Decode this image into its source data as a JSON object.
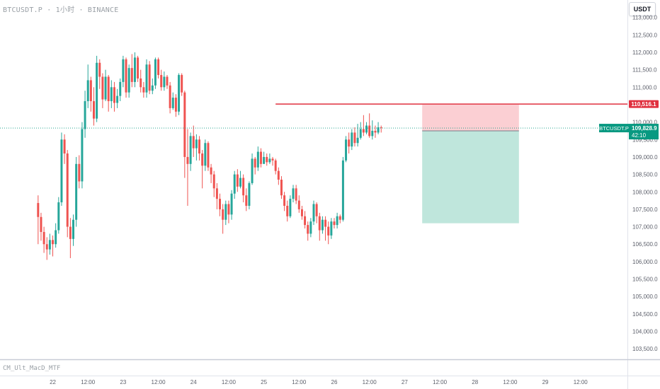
{
  "header": {
    "symbol_line": "BTCUSDT.P · 1小时 · BINANCE",
    "currency": "USDT"
  },
  "indicator": {
    "label": "CM_Ult_MacD_MTF"
  },
  "tags": {
    "resistance_value": "110,516.1",
    "symbol": "BTCUSDT.P",
    "last_price": "109,828.9",
    "countdown": "42:10"
  },
  "colors": {
    "up": "#26a69a",
    "down": "#ef5350",
    "resistance": "#e0303f",
    "risk_zone": "#fbcfd3",
    "reward_zone": "#bfe6dc",
    "last_price": "#089981"
  },
  "chart_data": {
    "type": "candlestick",
    "title": "",
    "y_axis": {
      "ticks": [
        103500,
        104000,
        104500,
        105000,
        105500,
        106000,
        106500,
        107000,
        107500,
        108000,
        108500,
        109000,
        109500,
        110000,
        110500,
        111000,
        111500,
        112000,
        112500,
        113000
      ],
      "tick_labels": [
        "103,500.0",
        "104,000.0",
        "104,500.0",
        "105,000.0",
        "105,500.0",
        "106,000.0",
        "106,500.0",
        "107,000.0",
        "107,500.0",
        "108,000.0",
        "108,500.0",
        "109,000.0",
        "109,500.0",
        "110,000.0",
        "110,500.0",
        "111,000.0",
        "111,500.0",
        "112,000.0",
        "112,500.0",
        "113,000.0"
      ],
      "range": [
        103200,
        113500
      ]
    },
    "x_axis": {
      "tick_labels": [
        "22",
        "12:00",
        "23",
        "12:00",
        "24",
        "12:00",
        "25",
        "12:00",
        "26",
        "12:00",
        "27",
        "12:00",
        "28",
        "12:00",
        "29",
        "12:00"
      ],
      "range_hours": [
        -36,
        178
      ]
    },
    "resistance_level": 110516.1,
    "last_price": 109828.9,
    "position": {
      "entry": 109750,
      "stop": 110500,
      "target": 107100,
      "x_start_hours": 108,
      "x_end_hours": 141
    },
    "candles": [
      [
        107680,
        107280,
        107900,
        106500
      ],
      [
        107280,
        106850,
        107400,
        106600
      ],
      [
        106850,
        106500,
        107000,
        106250
      ],
      [
        106500,
        106350,
        106700,
        106050
      ],
      [
        106350,
        106620,
        106800,
        106200
      ],
      [
        106620,
        106500,
        106750,
        106150
      ],
      [
        106500,
        106900,
        107100,
        106400
      ],
      [
        106900,
        107700,
        107850,
        106800
      ],
      [
        107700,
        109500,
        109700,
        107600
      ],
      [
        109500,
        109100,
        109650,
        108800
      ],
      [
        109100,
        107000,
        109200,
        106700
      ],
      [
        107000,
        106650,
        107250,
        106100
      ],
      [
        106650,
        107200,
        107350,
        106450
      ],
      [
        107200,
        108800,
        109000,
        107000
      ],
      [
        108800,
        108300,
        109050,
        108100
      ],
      [
        108300,
        109800,
        110000,
        108100
      ],
      [
        109800,
        110600,
        110900,
        109550
      ],
      [
        110600,
        111200,
        111650,
        110400
      ],
      [
        111200,
        110600,
        111300,
        110300
      ],
      [
        110600,
        110100,
        111000,
        109900
      ],
      [
        110100,
        111700,
        111900,
        110000
      ],
      [
        111700,
        111300,
        111800,
        110950
      ],
      [
        111300,
        110650,
        111400,
        110400
      ],
      [
        110650,
        111300,
        111500,
        110600
      ],
      [
        111300,
        110600,
        111350,
        110300
      ],
      [
        110600,
        111000,
        111200,
        110400
      ],
      [
        111000,
        110550,
        111150,
        110300
      ],
      [
        110550,
        110750,
        110950,
        110400
      ],
      [
        110750,
        111150,
        111250,
        110600
      ],
      [
        111150,
        111800,
        111900,
        111000
      ],
      [
        111800,
        110850,
        111850,
        110700
      ],
      [
        110850,
        111550,
        111650,
        110700
      ],
      [
        111550,
        111150,
        111950,
        111000
      ],
      [
        111150,
        111850,
        112000,
        111000
      ],
      [
        111850,
        111250,
        111900,
        111150
      ],
      [
        111250,
        111000,
        111500,
        110850
      ],
      [
        111000,
        110850,
        111150,
        110700
      ],
      [
        110850,
        111650,
        111800,
        110700
      ],
      [
        111650,
        110900,
        111750,
        110800
      ],
      [
        110900,
        111050,
        111250,
        110800
      ],
      [
        111050,
        111800,
        111850,
        110950
      ],
      [
        111800,
        111350,
        111850,
        111250
      ],
      [
        111350,
        111000,
        111500,
        110900
      ],
      [
        111000,
        111300,
        111450,
        110900
      ],
      [
        111300,
        111050,
        111350,
        110950
      ],
      [
        111050,
        110400,
        111150,
        110250
      ],
      [
        110400,
        110700,
        110850,
        110350
      ],
      [
        110700,
        110300,
        110800,
        110150
      ],
      [
        110300,
        111350,
        111400,
        110200
      ],
      [
        111350,
        110850,
        111400,
        110750
      ],
      [
        110850,
        109000,
        110900,
        108400
      ],
      [
        109000,
        108800,
        109800,
        107600
      ],
      [
        108800,
        109600,
        109700,
        108600
      ],
      [
        109600,
        109250,
        109900,
        109000
      ],
      [
        109250,
        109500,
        109650,
        108900
      ],
      [
        109500,
        109100,
        109600,
        108900
      ],
      [
        109100,
        108750,
        109200,
        108100
      ],
      [
        108750,
        109400,
        109500,
        108600
      ],
      [
        109400,
        108700,
        109450,
        108600
      ],
      [
        108700,
        108500,
        108800,
        108250
      ],
      [
        108500,
        108100,
        108600,
        107850
      ],
      [
        108100,
        107800,
        108250,
        107500
      ],
      [
        107800,
        107500,
        107950,
        107300
      ],
      [
        107500,
        107200,
        107650,
        106800
      ],
      [
        107200,
        107650,
        107750,
        107050
      ],
      [
        107650,
        107350,
        107750,
        107100
      ],
      [
        107350,
        107950,
        108050,
        107200
      ],
      [
        107950,
        108500,
        108600,
        107800
      ],
      [
        108500,
        108150,
        108650,
        108000
      ],
      [
        108150,
        108400,
        108600,
        108100
      ],
      [
        108400,
        107900,
        108500,
        107700
      ],
      [
        107900,
        107600,
        108100,
        107450
      ],
      [
        107600,
        108250,
        108300,
        107500
      ],
      [
        108250,
        108950,
        109100,
        108200
      ],
      [
        108950,
        108700,
        109000,
        108500
      ],
      [
        108700,
        109150,
        109300,
        108600
      ],
      [
        109150,
        108800,
        109250,
        108700
      ],
      [
        108800,
        109000,
        109150,
        108850
      ],
      [
        109000,
        108850,
        109100,
        108750
      ],
      [
        108850,
        108950,
        109100,
        108800
      ],
      [
        108950,
        108900,
        109000,
        108750
      ],
      [
        108900,
        108600,
        108950,
        108500
      ],
      [
        108600,
        108350,
        108700,
        108200
      ],
      [
        108350,
        107900,
        108450,
        107800
      ],
      [
        107900,
        107600,
        108000,
        107450
      ],
      [
        107600,
        107300,
        107750,
        107150
      ],
      [
        107300,
        107800,
        107900,
        107250
      ],
      [
        107800,
        108100,
        108200,
        107700
      ],
      [
        108100,
        107750,
        108200,
        107650
      ],
      [
        107750,
        107500,
        107900,
        107400
      ],
      [
        107500,
        107300,
        107600,
        107200
      ],
      [
        107300,
        107050,
        107450,
        106950
      ],
      [
        107050,
        106800,
        107150,
        106600
      ],
      [
        106800,
        107150,
        107250,
        106700
      ],
      [
        107150,
        107650,
        107750,
        107050
      ],
      [
        107650,
        107300,
        107700,
        107100
      ],
      [
        107300,
        106900,
        107400,
        106600
      ],
      [
        106900,
        107200,
        107300,
        106800
      ],
      [
        107200,
        107000,
        107300,
        106600
      ],
      [
        107000,
        106750,
        107150,
        106500
      ],
      [
        106750,
        107150,
        107250,
        106650
      ],
      [
        107150,
        107050,
        107250,
        106950
      ],
      [
        107050,
        107300,
        107400,
        106950
      ],
      [
        107300,
        107200,
        107350,
        107100
      ],
      [
        107200,
        108900,
        109000,
        107150
      ],
      [
        108900,
        109500,
        109600,
        108850
      ],
      [
        109500,
        109300,
        109700,
        109100
      ],
      [
        109300,
        109700,
        109800,
        109200
      ],
      [
        109700,
        109400,
        109850,
        109300
      ],
      [
        109400,
        109550,
        109950,
        109300
      ],
      [
        109550,
        109800,
        110000,
        109500
      ],
      [
        109800,
        109700,
        110200,
        109600
      ],
      [
        109700,
        109900,
        110000,
        109650
      ],
      [
        109900,
        109600,
        110250,
        109550
      ],
      [
        109600,
        109750,
        110050,
        109500
      ],
      [
        109750,
        109700,
        109900,
        109550
      ],
      [
        109700,
        109850,
        110000,
        109650
      ],
      [
        109850,
        109828.9,
        109900,
        109700
      ]
    ]
  }
}
